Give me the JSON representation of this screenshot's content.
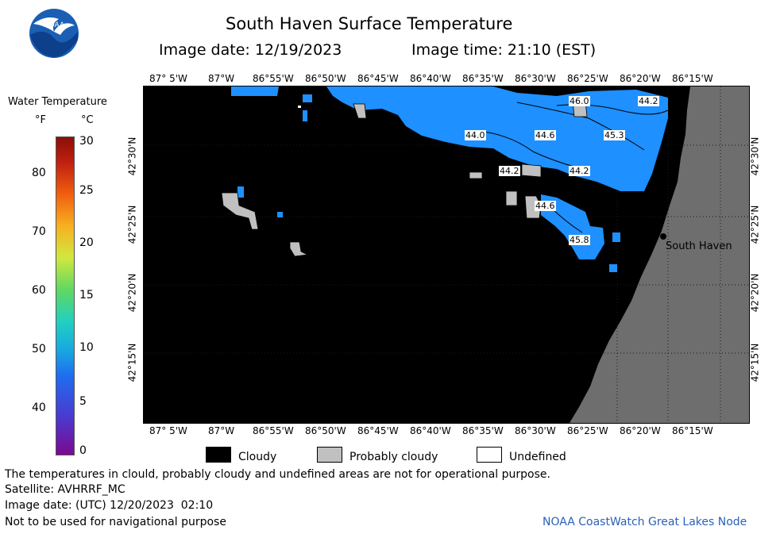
{
  "header": {
    "logo_text": "NOAA",
    "title": "South Haven Surface Temperature",
    "image_date": "Image date: 12/19/2023",
    "image_time": "Image time: 21:10 (EST)"
  },
  "colorbar": {
    "title": "Water Temperature",
    "unit_f": "°F",
    "unit_c": "°C",
    "f_ticks": [
      "80",
      "70",
      "60",
      "50",
      "40"
    ],
    "c_ticks": [
      "30",
      "25",
      "20",
      "15",
      "10",
      "5",
      "0"
    ]
  },
  "axes": {
    "lon_labels": [
      "87° 5'W",
      "87°W",
      "86°55'W",
      "86°50'W",
      "86°45'W",
      "86°40'W",
      "86°35'W",
      "86°30'W",
      "86°25'W",
      "86°20'W",
      "86°15'W"
    ],
    "lat_labels": [
      "42°30'N",
      "42°25'N",
      "42°20'N",
      "42°15'N"
    ]
  },
  "map": {
    "city_label": "South Haven",
    "temperature_labels": [
      "46.0",
      "44.2",
      "44.0",
      "44.6",
      "45.3",
      "44.2",
      "44.2",
      "44.6",
      "45.8"
    ]
  },
  "legend": {
    "cloudy": "Cloudy",
    "probably_cloudy": "Probably cloudy",
    "undefined": "Undefined",
    "colors": {
      "cloudy": "#000000",
      "probably_cloudy": "#c0c0c0",
      "undefined": "#ffffff"
    }
  },
  "footer": {
    "disclaimer": "The temperatures in clould, probably cloudy and undefined areas are not for operational purpose.",
    "satellite": "Satellite: AVHRRF_MC",
    "utc_date": "Image date: (UTC) 12/20/2023  02:10",
    "nav_warning": "Not to be used for navigational purpose",
    "credit": "NOAA CoastWatch Great Lakes Node"
  },
  "colors": {
    "water": "#1e90ff",
    "land": "#6e6e6e",
    "credit": "#2a62b8"
  }
}
